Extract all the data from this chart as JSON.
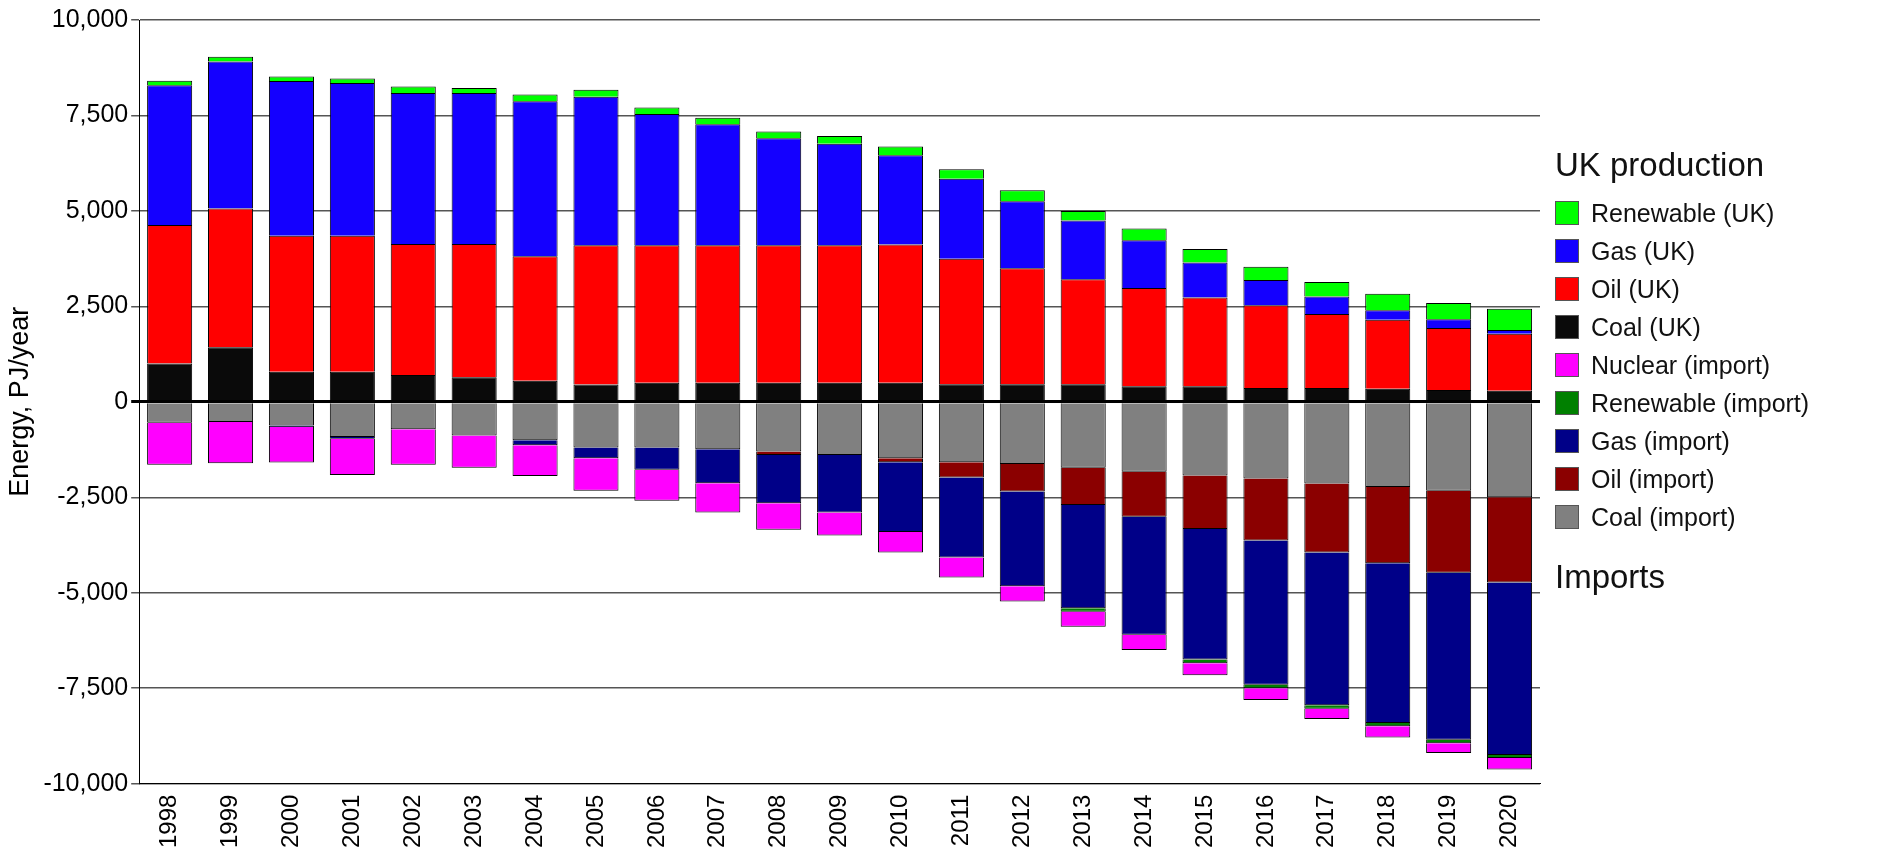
{
  "chart_data": {
    "type": "bar",
    "stacked": true,
    "ylabel": "Energy, PJ/year",
    "categories": [
      "1998",
      "1999",
      "2000",
      "2001",
      "2002",
      "2003",
      "2004",
      "2005",
      "2006",
      "2007",
      "2008",
      "2009",
      "2010",
      "2011",
      "2012",
      "2013",
      "2014",
      "2015",
      "2016",
      "2017",
      "2018",
      "2019",
      "2020"
    ],
    "series": [
      {
        "name": "Coal (UK)",
        "color": "#0a0a0a",
        "values": [
          1000,
          1430,
          790,
          790,
          700,
          640,
          550,
          450,
          500,
          500,
          500,
          500,
          500,
          460,
          460,
          460,
          410,
          410,
          360,
          360,
          340,
          310,
          290
        ]
      },
      {
        "name": "Oil (UK)",
        "color": "#ff0000",
        "values": [
          3630,
          3630,
          3560,
          3560,
          3430,
          3490,
          3260,
          3650,
          3600,
          3600,
          3600,
          3600,
          3620,
          3290,
          3040,
          2750,
          2570,
          2320,
          2170,
          1940,
          1810,
          1620,
          1490
        ]
      },
      {
        "name": "Gas (UK)",
        "color": "#1400ff",
        "values": [
          3660,
          3850,
          4050,
          4000,
          3960,
          3960,
          4060,
          3890,
          3440,
          3170,
          2800,
          2660,
          2340,
          2090,
          1750,
          1540,
          1250,
          920,
          660,
          460,
          250,
          230,
          100
        ]
      },
      {
        "name": "Renewable (UK)",
        "color": "#00ff00",
        "values": [
          120,
          130,
          120,
          120,
          170,
          130,
          180,
          180,
          170,
          170,
          180,
          200,
          230,
          250,
          290,
          250,
          310,
          350,
          350,
          380,
          430,
          430,
          560
        ]
      },
      {
        "name": "Coal (import)",
        "color": "#808080",
        "values": [
          -550,
          -530,
          -620,
          -920,
          -720,
          -880,
          -1010,
          -1200,
          -1200,
          -1240,
          -1300,
          -1390,
          -1480,
          -1580,
          -1630,
          -1730,
          -1830,
          -1930,
          -2010,
          -2140,
          -2230,
          -2330,
          -2500
        ]
      },
      {
        "name": "Oil (import)",
        "color": "#8b0000",
        "values": [
          0,
          0,
          0,
          0,
          0,
          0,
          0,
          0,
          0,
          0,
          -90,
          0,
          -100,
          -400,
          -720,
          -970,
          -1180,
          -1400,
          -1620,
          -1810,
          -2000,
          -2150,
          -2230
        ]
      },
      {
        "name": "Gas (import)",
        "color": "#000088",
        "values": [
          0,
          0,
          -40,
          -50,
          0,
          0,
          -130,
          -280,
          -580,
          -890,
          -1270,
          -1510,
          -1830,
          -2100,
          -2480,
          -2710,
          -3090,
          -3420,
          -3780,
          -4000,
          -4180,
          -4370,
          -4520
        ]
      },
      {
        "name": "Renewable (import)",
        "color": "#008000",
        "values": [
          0,
          0,
          0,
          0,
          0,
          0,
          0,
          0,
          0,
          0,
          0,
          0,
          0,
          0,
          0,
          -90,
          0,
          -100,
          -90,
          -90,
          -90,
          -90,
          -80
        ]
      },
      {
        "name": "Nuclear (import)",
        "color": "#ff00ff",
        "values": [
          -1100,
          -1080,
          -930,
          -950,
          -930,
          -850,
          -800,
          -850,
          -810,
          -770,
          -690,
          -600,
          -540,
          -520,
          -400,
          -390,
          -400,
          -310,
          -310,
          -270,
          -290,
          -260,
          -300
        ]
      }
    ],
    "ylim": [
      -10000,
      10000
    ],
    "yticks": [
      {
        "value": -10000,
        "label": "-10,000"
      },
      {
        "value": -7500,
        "label": "-7,500"
      },
      {
        "value": -5000,
        "label": "-5,000"
      },
      {
        "value": -2500,
        "label": "-2,500"
      },
      0,
      {
        "value": 2500,
        "label": "2,500"
      },
      {
        "value": 5000,
        "label": "5,000"
      },
      {
        "value": 7500,
        "label": "7,500"
      },
      {
        "value": 10000,
        "label": "10,000"
      }
    ],
    "grid": "y",
    "legend": "right",
    "annotations": [
      "UK production",
      "Imports"
    ]
  }
}
